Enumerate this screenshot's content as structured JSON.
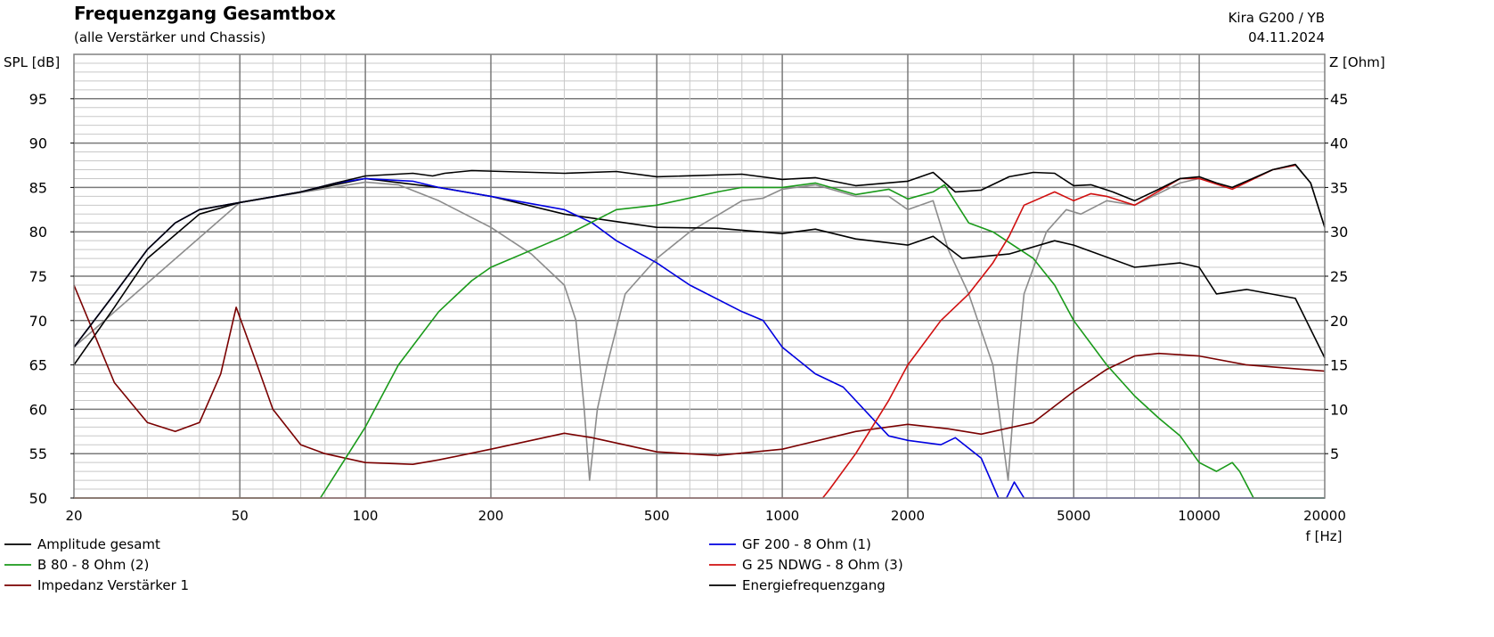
{
  "chart_data": {
    "type": "line",
    "title": "Frequenzgang Gesamtbox",
    "subtitle": "(alle Verstärker und Chassis)",
    "info_line1": "Kira G200 / YB",
    "info_line2": "04.11.2024",
    "ylabel": "SPL [dB]",
    "y2label": "Z [Ohm]",
    "xlabel": "f [Hz]",
    "xscale": "log",
    "xlim": [
      20,
      20000
    ],
    "ylim": [
      50,
      100
    ],
    "y2lim": [
      0,
      50
    ],
    "grid": true,
    "legend_position": "bottom",
    "x_ticks": [
      20,
      50,
      100,
      200,
      500,
      1000,
      2000,
      5000,
      10000,
      20000
    ],
    "y_ticks": [
      50,
      55,
      60,
      65,
      70,
      75,
      80,
      85,
      90,
      95
    ],
    "y2_ticks": [
      5,
      10,
      15,
      20,
      25,
      30,
      35,
      40,
      45
    ],
    "series": [
      {
        "name": "Amplitude gesamt",
        "axis": "left",
        "color": "#000000",
        "points": [
          [
            20,
            67
          ],
          [
            25,
            73
          ],
          [
            30,
            78
          ],
          [
            35,
            81
          ],
          [
            40,
            82.5
          ],
          [
            50,
            83.3
          ],
          [
            70,
            84.5
          ],
          [
            85,
            85.5
          ],
          [
            100,
            86.3
          ],
          [
            130,
            86.6
          ],
          [
            145,
            86.3
          ],
          [
            155,
            86.6
          ],
          [
            180,
            86.9
          ],
          [
            300,
            86.6
          ],
          [
            400,
            86.8
          ],
          [
            500,
            86.2
          ],
          [
            800,
            86.5
          ],
          [
            1000,
            85.9
          ],
          [
            1200,
            86.1
          ],
          [
            1500,
            85.2
          ],
          [
            2000,
            85.7
          ],
          [
            2300,
            86.7
          ],
          [
            2600,
            84.5
          ],
          [
            3000,
            84.7
          ],
          [
            3500,
            86.2
          ],
          [
            4000,
            86.7
          ],
          [
            4500,
            86.6
          ],
          [
            5000,
            85.2
          ],
          [
            5500,
            85.3
          ],
          [
            6200,
            84.5
          ],
          [
            7000,
            83.5
          ],
          [
            8000,
            84.8
          ],
          [
            9000,
            86
          ],
          [
            10000,
            86.2
          ],
          [
            11000,
            85.5
          ],
          [
            12000,
            85
          ],
          [
            15000,
            87
          ],
          [
            17000,
            87.6
          ],
          [
            18500,
            85.5
          ],
          [
            20000,
            80.5
          ]
        ]
      },
      {
        "name": "GF 200 - 8 Ohm (1)",
        "axis": "left",
        "color": "#0000e0",
        "points": [
          [
            20,
            67
          ],
          [
            25,
            73
          ],
          [
            30,
            78
          ],
          [
            35,
            81
          ],
          [
            40,
            82.5
          ],
          [
            50,
            83.3
          ],
          [
            70,
            84.5
          ],
          [
            85,
            85.5
          ],
          [
            100,
            86
          ],
          [
            130,
            85.7
          ],
          [
            150,
            85
          ],
          [
            200,
            84
          ],
          [
            300,
            82.5
          ],
          [
            350,
            81
          ],
          [
            400,
            79
          ],
          [
            500,
            76.5
          ],
          [
            600,
            74
          ],
          [
            800,
            71
          ],
          [
            900,
            70
          ],
          [
            1000,
            67
          ],
          [
            1200,
            64
          ],
          [
            1400,
            62.5
          ],
          [
            1800,
            57
          ],
          [
            2000,
            56.5
          ],
          [
            2400,
            56
          ],
          [
            2600,
            56.8
          ],
          [
            3000,
            54.5
          ],
          [
            3300,
            50
          ],
          [
            3450,
            50
          ],
          [
            3600,
            51.8
          ],
          [
            3800,
            50
          ],
          [
            20000,
            50
          ]
        ]
      },
      {
        "name": "B 80 - 8 Ohm (2)",
        "axis": "left",
        "color": "#1a9a1a",
        "points": [
          [
            20,
            50
          ],
          [
            78,
            50
          ],
          [
            100,
            58
          ],
          [
            120,
            65
          ],
          [
            150,
            71
          ],
          [
            180,
            74.5
          ],
          [
            200,
            76
          ],
          [
            300,
            79.5
          ],
          [
            400,
            82.5
          ],
          [
            500,
            83
          ],
          [
            700,
            84.5
          ],
          [
            800,
            85
          ],
          [
            1000,
            85
          ],
          [
            1200,
            85.5
          ],
          [
            1500,
            84.2
          ],
          [
            1800,
            84.8
          ],
          [
            2000,
            83.7
          ],
          [
            2300,
            84.5
          ],
          [
            2450,
            85.3
          ],
          [
            2800,
            81
          ],
          [
            3200,
            80
          ],
          [
            4000,
            77
          ],
          [
            4500,
            74
          ],
          [
            5000,
            70
          ],
          [
            6000,
            65
          ],
          [
            7000,
            61.5
          ],
          [
            8000,
            59
          ],
          [
            9000,
            57
          ],
          [
            10000,
            54
          ],
          [
            11000,
            53
          ],
          [
            12000,
            54
          ],
          [
            12500,
            53
          ],
          [
            13500,
            50
          ],
          [
            20000,
            50
          ]
        ]
      },
      {
        "name": "G 25 NDWG - 8 Ohm (3)",
        "axis": "left",
        "color": "#d01010",
        "points": [
          [
            20,
            50
          ],
          [
            1250,
            50
          ],
          [
            1300,
            51
          ],
          [
            1500,
            55
          ],
          [
            1800,
            61
          ],
          [
            2000,
            65
          ],
          [
            2400,
            70
          ],
          [
            2800,
            73
          ],
          [
            3200,
            76.5
          ],
          [
            3500,
            79.5
          ],
          [
            3800,
            83
          ],
          [
            4500,
            84.5
          ],
          [
            5000,
            83.5
          ],
          [
            5500,
            84.3
          ],
          [
            6000,
            84
          ],
          [
            7000,
            83
          ],
          [
            8000,
            84.6
          ],
          [
            9000,
            86
          ],
          [
            10000,
            86
          ],
          [
            12000,
            84.8
          ],
          [
            15000,
            87
          ],
          [
            17000,
            87.5
          ]
        ]
      },
      {
        "name": "Impedanz Verstärker 1",
        "axis": "right",
        "color": "#7a0000",
        "points": [
          [
            20,
            24
          ],
          [
            25,
            13
          ],
          [
            30,
            8.5
          ],
          [
            35,
            7.5
          ],
          [
            40,
            8.5
          ],
          [
            45,
            14
          ],
          [
            49,
            21.5
          ],
          [
            55,
            15
          ],
          [
            60,
            10
          ],
          [
            70,
            6
          ],
          [
            80,
            5
          ],
          [
            100,
            4
          ],
          [
            130,
            3.8
          ],
          [
            150,
            4.3
          ],
          [
            200,
            5.5
          ],
          [
            300,
            7.3
          ],
          [
            350,
            6.8
          ],
          [
            500,
            5.2
          ],
          [
            700,
            4.8
          ],
          [
            1000,
            5.5
          ],
          [
            1500,
            7.5
          ],
          [
            2000,
            8.3
          ],
          [
            2500,
            7.8
          ],
          [
            3000,
            7.2
          ],
          [
            4000,
            8.5
          ],
          [
            5000,
            12
          ],
          [
            6000,
            14.5
          ],
          [
            7000,
            16
          ],
          [
            8000,
            16.3
          ],
          [
            10000,
            16
          ],
          [
            13000,
            15
          ],
          [
            20000,
            14.3
          ]
        ]
      },
      {
        "name": "Energiefrequenzgang",
        "axis": "left",
        "color": "#000000",
        "points": [
          [
            20,
            65
          ],
          [
            25,
            71.5
          ],
          [
            30,
            77
          ],
          [
            40,
            82
          ],
          [
            50,
            83.3
          ],
          [
            70,
            84.5
          ],
          [
            100,
            86
          ],
          [
            150,
            85
          ],
          [
            200,
            84
          ],
          [
            300,
            82
          ],
          [
            500,
            80.5
          ],
          [
            700,
            80.4
          ],
          [
            1000,
            79.8
          ],
          [
            1200,
            80.3
          ],
          [
            1500,
            79.2
          ],
          [
            2000,
            78.5
          ],
          [
            2300,
            79.5
          ],
          [
            2700,
            77
          ],
          [
            3500,
            77.5
          ],
          [
            4500,
            79
          ],
          [
            5000,
            78.5
          ],
          [
            7000,
            76
          ],
          [
            9000,
            76.5
          ],
          [
            10000,
            76
          ],
          [
            11000,
            73
          ],
          [
            13000,
            73.5
          ],
          [
            17000,
            72.5
          ],
          [
            20000,
            65.8
          ]
        ]
      },
      {
        "name": null,
        "axis": "left",
        "color": "#8c8c8c",
        "points": [
          [
            20,
            67
          ],
          [
            50,
            83.3
          ],
          [
            100,
            85.6
          ],
          [
            120,
            85.3
          ],
          [
            150,
            83.5
          ],
          [
            200,
            80.5
          ],
          [
            250,
            77.5
          ],
          [
            300,
            74
          ],
          [
            320,
            70
          ],
          [
            335,
            60
          ],
          [
            345,
            52
          ],
          [
            360,
            60
          ],
          [
            380,
            65
          ],
          [
            420,
            73
          ],
          [
            500,
            77
          ],
          [
            600,
            80
          ],
          [
            800,
            83.5
          ],
          [
            900,
            83.8
          ],
          [
            1000,
            84.8
          ],
          [
            1200,
            85.3
          ],
          [
            1500,
            84
          ],
          [
            1800,
            84
          ],
          [
            2000,
            82.5
          ],
          [
            2300,
            83.5
          ],
          [
            2500,
            78
          ],
          [
            2800,
            73
          ],
          [
            3200,
            65
          ],
          [
            3480,
            52
          ],
          [
            3650,
            65
          ],
          [
            3800,
            73
          ],
          [
            4300,
            80
          ],
          [
            4800,
            82.5
          ],
          [
            5200,
            82
          ],
          [
            6000,
            83.5
          ],
          [
            7000,
            83
          ],
          [
            9000,
            85.5
          ],
          [
            10000,
            86
          ],
          [
            12000,
            85
          ],
          [
            15000,
            87
          ],
          [
            17000,
            87.5
          ],
          [
            18500,
            85.5
          ],
          [
            20000,
            80.5
          ]
        ]
      }
    ]
  }
}
